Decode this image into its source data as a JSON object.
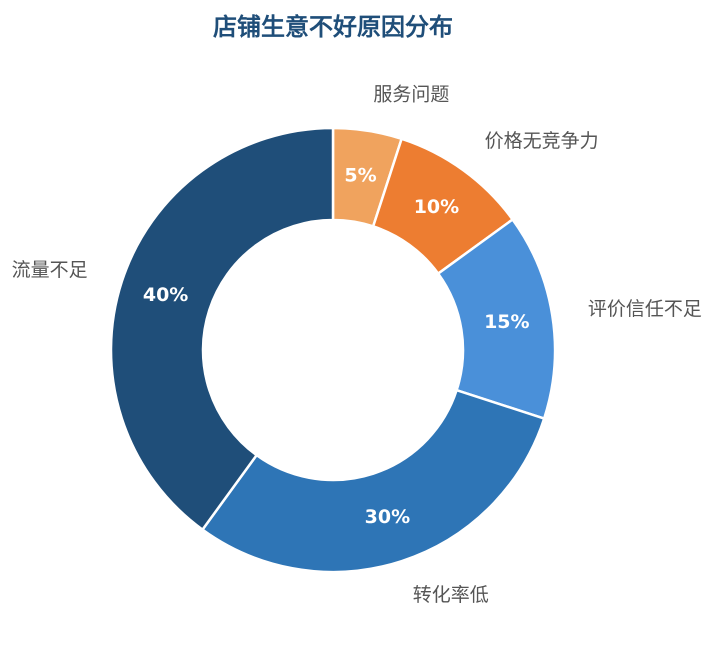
{
  "chart_data": {
    "type": "donut",
    "title": "店铺生意不好原因分布",
    "categories": [
      "服务问题",
      "价格无竞争力",
      "评价信任不足",
      "转化率低",
      "流量不足"
    ],
    "values": [
      5,
      10,
      15,
      30,
      40
    ],
    "value_labels": [
      "5%",
      "10%",
      "15%",
      "30%",
      "40%"
    ],
    "colors": [
      "#f0a35e",
      "#ed7d31",
      "#4a90d9",
      "#2e75b6",
      "#1f4e79"
    ]
  }
}
